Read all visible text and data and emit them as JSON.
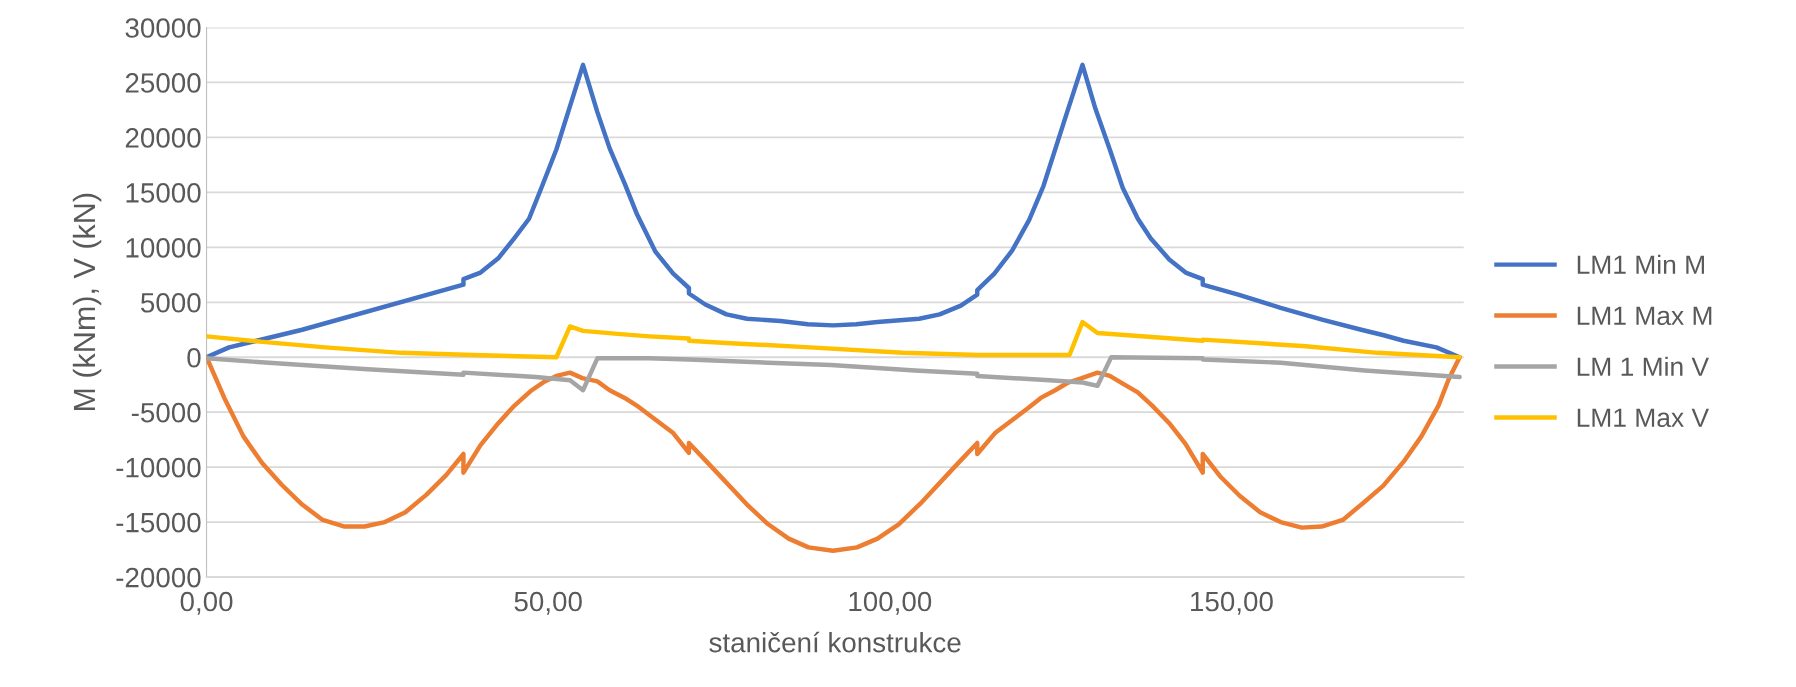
{
  "chart_data": {
    "type": "line",
    "xlabel": "staničení konstrukce",
    "ylabel": "M (kNm), V (kN)",
    "xlim": [
      0,
      184
    ],
    "xticks": [
      {
        "value": 0,
        "label": "0,00"
      },
      {
        "value": 50,
        "label": "50,00"
      },
      {
        "value": 100,
        "label": "100,00"
      },
      {
        "value": 150,
        "label": "150,00"
      }
    ],
    "ylim": [
      -20000,
      30000
    ],
    "yticks": [
      -20000,
      -15000,
      -10000,
      -5000,
      0,
      5000,
      10000,
      15000,
      20000,
      25000,
      30000
    ],
    "grid": "y",
    "legend": "right",
    "marker": "none",
    "line_style": "solid",
    "series": [
      {
        "name": "LM1 Min M",
        "color": "#4472c4",
        "x": [
          0,
          3.3,
          14.0,
          37.6,
          37.6,
          40.1,
          42.7,
          45.0,
          47.2,
          49.0,
          51.2,
          55.1,
          57.2,
          59.0,
          61.2,
          63.0,
          65.7,
          68.3,
          70.6,
          70.6,
          73.0,
          76.1,
          79.1,
          84.0,
          88.0,
          91.7,
          95.1,
          98.2,
          104.3,
          107.3,
          110.4,
          112.8,
          112.8,
          115.3,
          117.9,
          120.4,
          122.5,
          125.8,
          128.2,
          130.1,
          132.2,
          134.1,
          136.3,
          138.2,
          140.9,
          143.3,
          145.8,
          145.8,
          151.0,
          157.2,
          163.4,
          169.0,
          172.3,
          175.2,
          180.0,
          183.4
        ],
        "values": [
          0,
          900,
          2500,
          6600,
          7100,
          7700,
          9000,
          10800,
          12600,
          15400,
          18900,
          26600,
          22300,
          19000,
          15800,
          13000,
          9600,
          7600,
          6300,
          5800,
          4800,
          3900,
          3500,
          3300,
          3000,
          2900,
          3000,
          3200,
          3500,
          3900,
          4700,
          5700,
          6100,
          7600,
          9700,
          12500,
          15600,
          22000,
          26600,
          22600,
          18900,
          15400,
          12600,
          10800,
          8900,
          7700,
          7100,
          6600,
          5700,
          4500,
          3400,
          2500,
          2000,
          1500,
          900,
          0
        ]
      },
      {
        "name": "LM1 Max M",
        "color": "#ed7d31",
        "x": [
          0,
          2.6,
          5.4,
          8.1,
          11.0,
          14.0,
          17.0,
          20.2,
          23.1,
          26.1,
          29.1,
          32.2,
          35.1,
          37.6,
          37.6,
          40.1,
          42.7,
          44.9,
          47.6,
          49.5,
          51.2,
          53.2,
          55.0,
          57.2,
          59.0,
          61.2,
          63.2,
          68.3,
          70.6,
          70.6,
          73.5,
          79.1,
          82.0,
          85.2,
          88.1,
          91.7,
          95.2,
          98.2,
          101.3,
          104.5,
          109.9,
          112.8,
          112.8,
          115.4,
          120.3,
          122.1,
          124.2,
          126.1,
          128.1,
          130.4,
          132.2,
          134.1,
          136.3,
          138.4,
          140.9,
          143.3,
          145.8,
          145.8,
          148.3,
          151.2,
          154.2,
          157.2,
          160.3,
          163.2,
          166.3,
          169.2,
          172.2,
          175.2,
          177.8,
          180.3,
          181.8,
          183.4
        ],
        "values": [
          0,
          -3700,
          -7200,
          -9600,
          -11600,
          -13400,
          -14800,
          -15400,
          -15400,
          -15000,
          -14100,
          -12500,
          -10700,
          -8800,
          -10500,
          -8000,
          -6000,
          -4500,
          -3000,
          -2200,
          -1700,
          -1400,
          -1900,
          -2200,
          -3000,
          -3700,
          -4500,
          -6900,
          -8700,
          -7800,
          -9700,
          -13400,
          -15100,
          -16500,
          -17300,
          -17600,
          -17300,
          -16500,
          -15200,
          -13300,
          -9700,
          -7800,
          -8800,
          -6900,
          -4600,
          -3700,
          -3000,
          -2300,
          -1900,
          -1400,
          -1700,
          -2400,
          -3200,
          -4400,
          -6000,
          -7900,
          -10500,
          -8800,
          -10800,
          -12600,
          -14100,
          -15000,
          -15500,
          -15400,
          -14800,
          -13300,
          -11700,
          -9500,
          -7200,
          -4400,
          -2000,
          0
        ]
      },
      {
        "name": "LM 1 Min V",
        "color": "#a5a5a5",
        "x": [
          0,
          11.3,
          23.6,
          37.6,
          37.6,
          48.2,
          53.2,
          55.1,
          57.2,
          64.8,
          70.6,
          82.2,
          91.4,
          103.7,
          112.8,
          112.8,
          123.4,
          128.2,
          130.4,
          132.4,
          145.8,
          145.8,
          157.2,
          169.5,
          183.4
        ],
        "values": [
          -100,
          -600,
          -1100,
          -1600,
          -1400,
          -1800,
          -2100,
          -3000,
          -100,
          -100,
          -200,
          -500,
          -700,
          -1200,
          -1500,
          -1700,
          -2100,
          -2300,
          -2600,
          0,
          -100,
          -200,
          -500,
          -1200,
          -1800
        ]
      },
      {
        "name": "LM1 Max V",
        "color": "#ffc000",
        "x": [
          0,
          8.2,
          17.4,
          28.5,
          39.0,
          51.2,
          53.2,
          55.1,
          60.6,
          64.8,
          70.6,
          70.6,
          76.0,
          88.3,
          101.9,
          113.0,
          126.3,
          128.2,
          130.4,
          145.8,
          145.8,
          160.9,
          171.4,
          183.4
        ],
        "values": [
          1900,
          1400,
          900,
          400,
          200,
          0,
          2800,
          2400,
          2100,
          1900,
          1700,
          1500,
          1300,
          900,
          400,
          200,
          200,
          3200,
          2200,
          1500,
          1600,
          1000,
          400,
          0
        ]
      }
    ]
  }
}
